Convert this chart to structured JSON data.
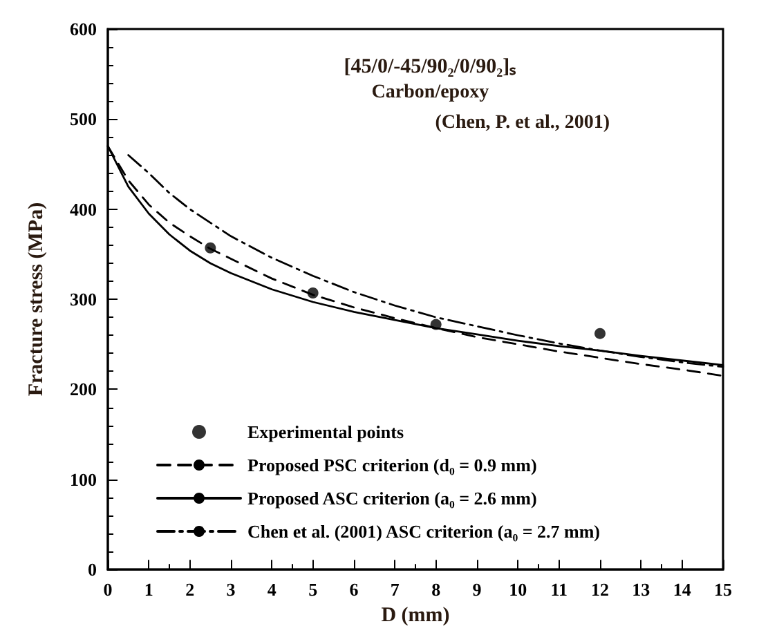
{
  "chart_data": {
    "type": "line",
    "title": "[45/0/-45/90₂/0/90₂]ₛ",
    "subtitle": "Carbon/epoxy",
    "annotations": [
      "(Chen, P. et al., 2001)"
    ],
    "xlabel": "D (mm)",
    "ylabel": "Fracture stress (MPa)",
    "xlim": [
      0,
      15
    ],
    "ylim": [
      0,
      600
    ],
    "xticks": [
      0,
      1,
      2,
      3,
      4,
      5,
      6,
      7,
      8,
      9,
      10,
      11,
      12,
      13,
      14,
      15
    ],
    "yticks": [
      0,
      100,
      200,
      300,
      400,
      500,
      600
    ],
    "grid": false,
    "legend": "bottom left",
    "series": [
      {
        "name": "Experimental points",
        "type": "scatter",
        "marker": "circle",
        "color": "#000000",
        "x": [
          2.5,
          5,
          8,
          12
        ],
        "values": [
          357,
          307,
          272,
          262
        ]
      },
      {
        "name": "Proposed PSC criterion (d₀ = 0.9 mm)",
        "line_style": "dashed",
        "color": "#000000",
        "x": [
          0,
          0.5,
          1,
          1.5,
          2,
          2.5,
          3,
          4,
          5,
          6,
          7,
          8,
          9,
          10,
          11,
          12,
          13,
          14,
          15
        ],
        "values": [
          470,
          432,
          405,
          385,
          370,
          356,
          345,
          323,
          305,
          291,
          279,
          268,
          258,
          250,
          242,
          235,
          228,
          222,
          215
        ]
      },
      {
        "name": "Proposed ASC criterion (a₀ = 2.6 mm)",
        "line_style": "solid",
        "color": "#000000",
        "x": [
          0,
          0.5,
          1,
          1.5,
          2,
          2.5,
          3,
          4,
          5,
          6,
          7,
          8,
          9,
          10,
          11,
          12,
          13,
          14,
          15
        ],
        "values": [
          470,
          425,
          395,
          372,
          354,
          340,
          329,
          311,
          297,
          286,
          277,
          268,
          261,
          254,
          248,
          243,
          237,
          232,
          227
        ]
      },
      {
        "name": "Chen et al. (2001) ASC criterion (a₀ = 2.7 mm)",
        "line_style": "dashdot",
        "color": "#000000",
        "x": [
          0.5,
          1,
          1.5,
          2,
          3,
          4,
          5,
          6,
          7,
          8,
          9,
          10,
          11,
          12,
          13,
          14,
          15
        ],
        "values": [
          460,
          440,
          418,
          400,
          370,
          346,
          326,
          308,
          293,
          280,
          270,
          260,
          251,
          243,
          236,
          230,
          225
        ]
      }
    ]
  }
}
